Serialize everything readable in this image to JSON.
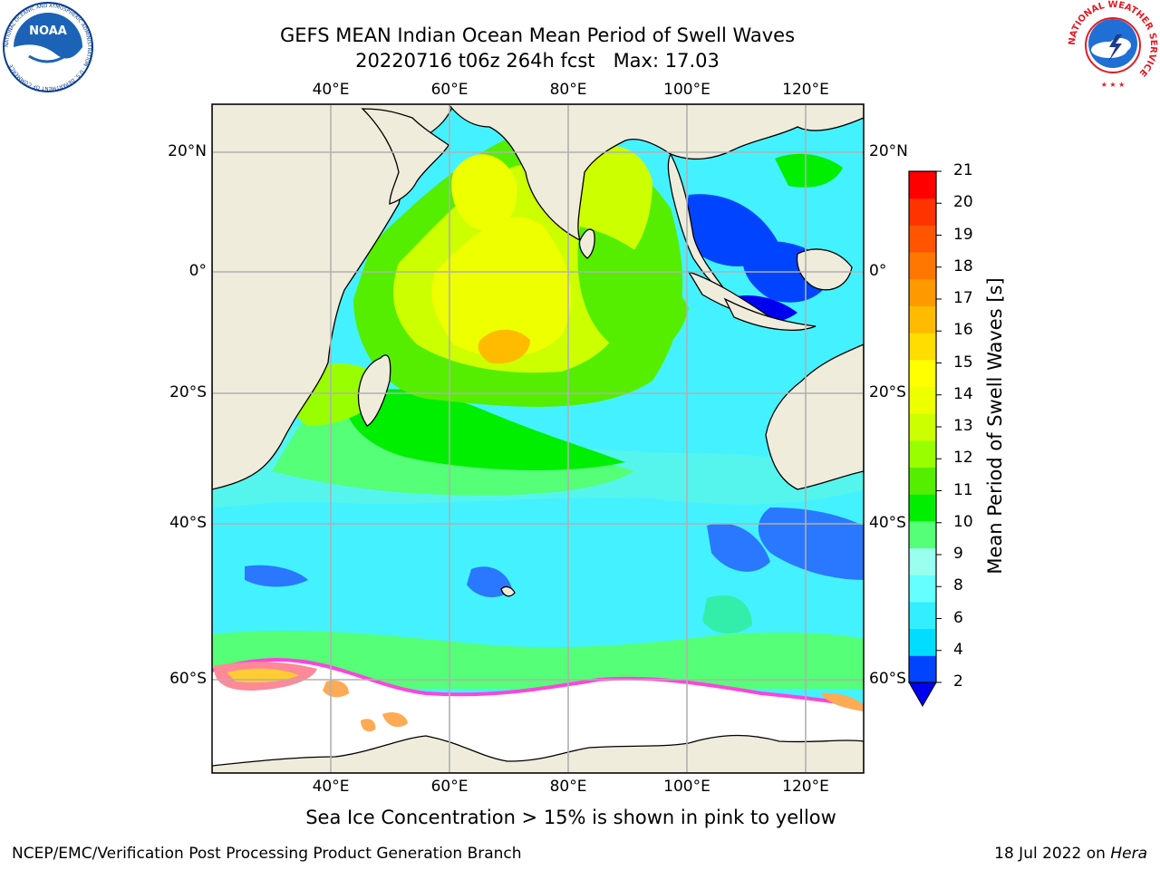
{
  "header": {
    "title_line1": "GEFS MEAN Indian Ocean Mean Period of Swell Waves",
    "title_line2": "20220716 t06z 264h fcst   Max: 17.03",
    "noaa_logo_text": "NOAA",
    "noaa_ring_text": "NATIONAL OCEANIC AND ATMOSPHERIC ADMINISTRATION · U.S. DEPARTMENT OF COMMERCE",
    "nws_ring_text": "NATIONAL WEATHER SERVICE"
  },
  "map": {
    "lon_labels": [
      "40°E",
      "60°E",
      "80°E",
      "100°E",
      "120°E"
    ],
    "lat_labels": [
      "20°N",
      "0°",
      "20°S",
      "40°S",
      "60°S"
    ],
    "extent": {
      "lon": [
        20,
        130
      ],
      "lat": [
        -72,
        28
      ]
    },
    "land_color": "#efecdc",
    "ice_colors": [
      "#ff66cc",
      "#ff8899",
      "#ffaa55",
      "#ffcc33"
    ]
  },
  "colorbar": {
    "label": "Mean Period of Swell Waves [s]",
    "ticks": [
      "21",
      "20",
      "19",
      "18",
      "17",
      "16",
      "15",
      "14",
      "13",
      "12",
      "11",
      "10",
      "9",
      "8",
      "6",
      "4",
      "2"
    ],
    "colors": [
      "#0044ff",
      "#00ddff",
      "#33eeff",
      "#66ffff",
      "#99ffee",
      "#55ff77",
      "#00ee00",
      "#55ee00",
      "#99ff00",
      "#ccff00",
      "#eeff00",
      "#ffff00",
      "#ffdd00",
      "#ffbb00",
      "#ff9900",
      "#ff7700",
      "#ff5500",
      "#ff3300",
      "#ff0000"
    ],
    "extend_color": "#0000ee"
  },
  "footer": {
    "note": "Sea Ice Concentration > 15% is shown in pink to yellow",
    "producer": "NCEP/EMC/Verification Post Processing Product Generation Branch",
    "date_prefix": "18 Jul 2022 on ",
    "host": "Hera"
  }
}
